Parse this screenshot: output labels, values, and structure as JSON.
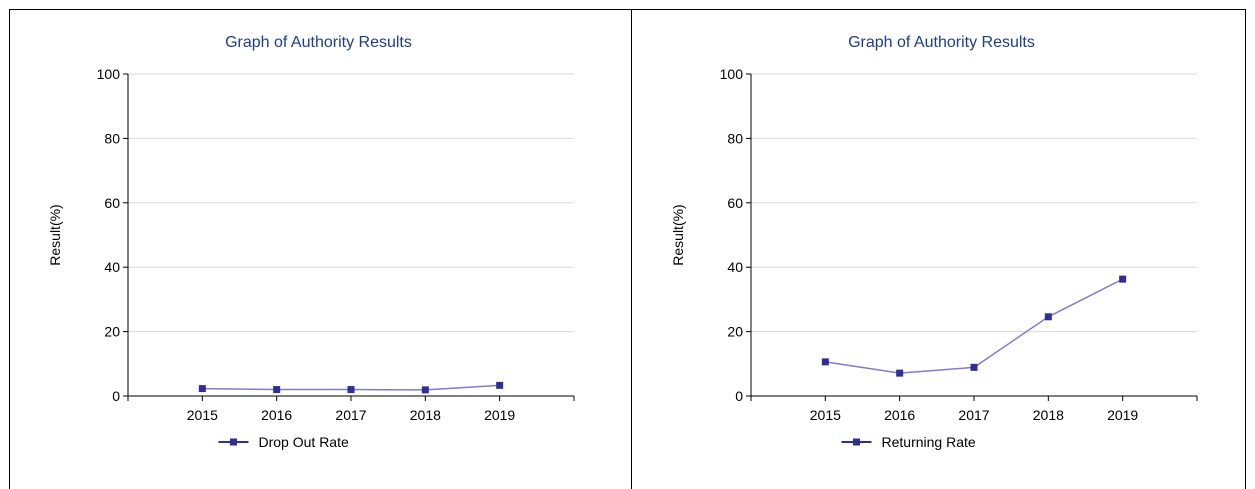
{
  "colors": {
    "title": "#1f3c8a",
    "series_line": "#7c7cd0",
    "series_marker": "#2e2e99",
    "grid": "#d9d9d9",
    "axis": "#000000"
  },
  "chart_data": [
    {
      "type": "line",
      "title": "Graph of Authority Results",
      "xlabel": "",
      "ylabel": "Result(%)",
      "categories": [
        "2015",
        "2016",
        "2017",
        "2018",
        "2019"
      ],
      "series": [
        {
          "name": "Drop Out Rate",
          "values": [
            2.3,
            2.0,
            2.0,
            1.9,
            3.3
          ]
        }
      ],
      "ylim": [
        0,
        100
      ],
      "yticks": [
        "0",
        "20",
        "40",
        "60",
        "80",
        "100"
      ],
      "grid": true,
      "legend": "bottom"
    },
    {
      "type": "line",
      "title": "Graph of Authority Results",
      "xlabel": "",
      "ylabel": "Result(%)",
      "categories": [
        "2015",
        "2016",
        "2017",
        "2018",
        "2019"
      ],
      "series": [
        {
          "name": "Returning Rate",
          "values": [
            10.6,
            7.1,
            8.9,
            24.6,
            36.3
          ]
        }
      ],
      "ylim": [
        0,
        100
      ],
      "yticks": [
        "0",
        "20",
        "40",
        "60",
        "80",
        "100"
      ],
      "grid": true,
      "legend": "bottom"
    }
  ]
}
